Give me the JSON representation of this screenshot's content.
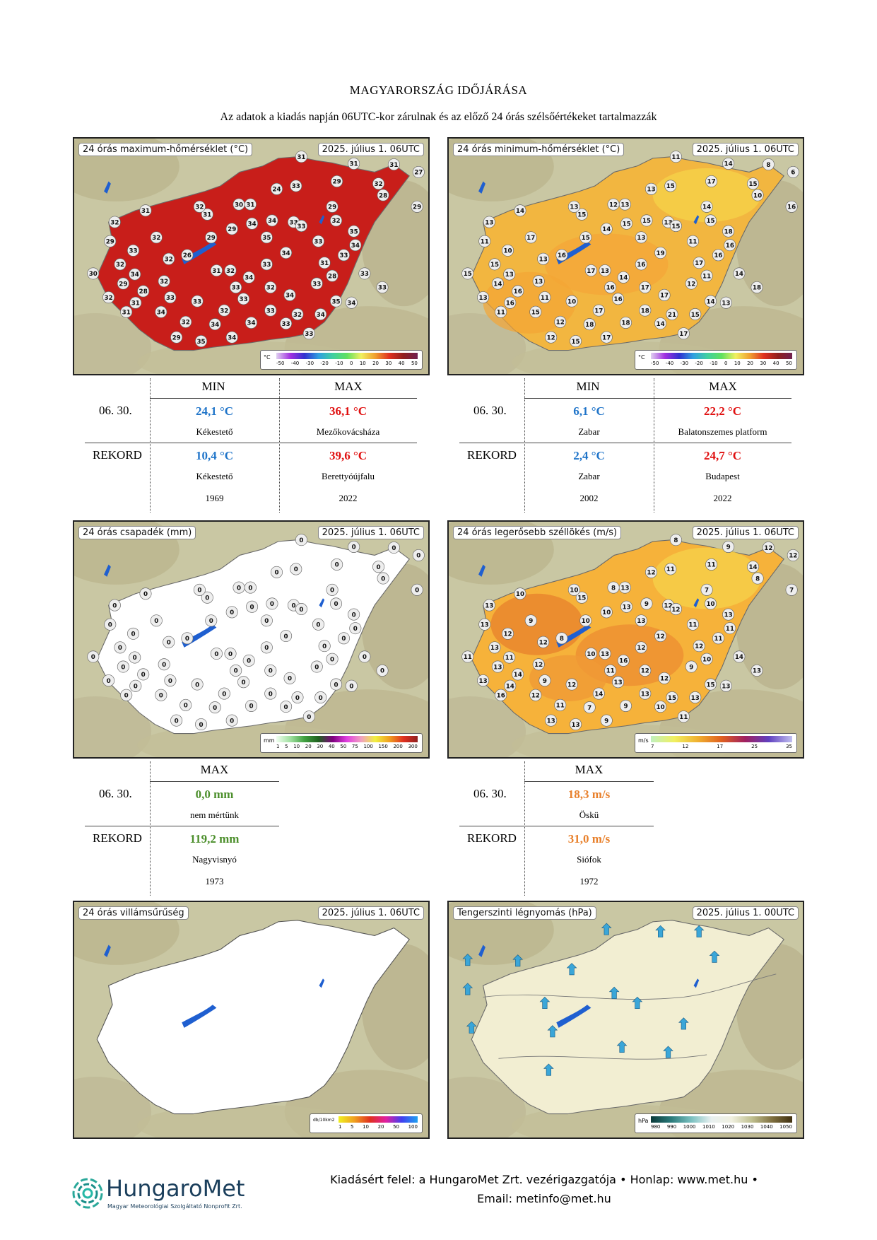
{
  "header": {
    "title": "MAGYARORSZÁG IDŐJÁRÁSA",
    "subtitle": "Az adatok a kiadás napján 06UTC-kor zárulnak és az előző 24 órás szélsőértékeket tartalmazzák"
  },
  "maps": {
    "tmax": {
      "title": "24 órás maximum-hőmérséklet (°C)",
      "date": "2025. július 1. 06UTC",
      "legend_unit": "°C",
      "legend_ticks": [
        "-50",
        "-40",
        "-30",
        "-20",
        "-10",
        "0",
        "10",
        "20",
        "30",
        "40",
        "50"
      ],
      "fill": "#c81e1a"
    },
    "tmin": {
      "title": "24 órás minimum-hőmérséklet (°C)",
      "date": "2025. július 1. 06UTC",
      "legend_unit": "°C",
      "legend_ticks": [
        "-50",
        "-40",
        "-30",
        "-20",
        "-10",
        "0",
        "10",
        "20",
        "30",
        "40",
        "50"
      ],
      "fill": "#f2b640"
    },
    "precip": {
      "title": "24 órás csapadék (mm)",
      "date": "2025. július 1. 06UTC",
      "legend_unit": "mm",
      "legend_ticks": [
        "1",
        "5",
        "10",
        "20",
        "30",
        "40",
        "50",
        "75",
        "100",
        "150",
        "200",
        "300"
      ],
      "fill": "#ffffff"
    },
    "wind": {
      "title": "24 órás legerősebb széllökés (m/s)",
      "date": "2025. július 1. 06UTC",
      "legend_unit": "m/s",
      "legend_ticks": [
        "7",
        "12",
        "17",
        "25",
        "35"
      ],
      "fill": "#f6b23a"
    },
    "lightning": {
      "title": "24 órás villámsűrűség",
      "date": "2025. július 1. 06UTC",
      "legend_unit": "db/10km2",
      "legend_ticks": [
        "1",
        "5",
        "10",
        "20",
        "50",
        "100"
      ],
      "fill": "#ffffff"
    },
    "pressure": {
      "title": "Tengerszinti légnyomás (hPa)",
      "date": "2025. július 1. 00UTC",
      "legend_unit": "hPa",
      "legend_ticks": [
        "980",
        "990",
        "1000",
        "1010",
        "1020",
        "1030",
        "1040",
        "1050"
      ],
      "fill": "#f2eed2"
    }
  },
  "tables": {
    "tmax": {
      "min_header": "MIN",
      "max_header": "MAX",
      "day_label": "06. 30.",
      "record_label": "REKORD",
      "day_min": "24,1 °C",
      "day_min_loc": "Kékestető",
      "day_max": "36,1 °C",
      "day_max_loc": "Mezőkovácsháza",
      "rec_min": "10,4 °C",
      "rec_min_loc": "Kékestető",
      "rec_min_year": "1969",
      "rec_max": "39,6 °C",
      "rec_max_loc": "Berettyóújfalu",
      "rec_max_year": "2022"
    },
    "tmin": {
      "min_header": "MIN",
      "max_header": "MAX",
      "day_label": "06. 30.",
      "record_label": "REKORD",
      "day_min": "6,1 °C",
      "day_min_loc": "Zabar",
      "day_max": "22,2 °C",
      "day_max_loc": "Balatonszemes platform",
      "rec_min": "2,4 °C",
      "rec_min_loc": "Zabar",
      "rec_min_year": "2002",
      "rec_max": "24,7 °C",
      "rec_max_loc": "Budapest",
      "rec_max_year": "2022"
    },
    "precip": {
      "max_header": "MAX",
      "day_label": "06. 30.",
      "record_label": "REKORD",
      "day_max": "0,0 mm",
      "day_max_loc": "nem mértünk",
      "rec_max": "119,2 mm",
      "rec_max_loc": "Nagyvisnyó",
      "rec_max_year": "1973"
    },
    "wind": {
      "max_header": "MAX",
      "day_label": "06. 30.",
      "record_label": "REKORD",
      "day_max": "18,3 m/s",
      "day_max_loc": "Öskü",
      "rec_max": "31,0 m/s",
      "rec_max_loc": "Siófok",
      "rec_max_year": "1972"
    }
  },
  "footer": {
    "logo_name": "HungaroMet",
    "logo_sub": "Magyar Meteorológiai Szolgáltató Nonprofit Zrt.",
    "line1": "Kiadásért felel: a HungaroMet Zrt. vezérigazgatója • Honlap: www.met.hu •",
    "line2": "Email: metinfo@met.hu"
  },
  "station_values": {
    "tmax": [
      "31",
      "31",
      "29",
      "32",
      "31",
      "27",
      "31",
      "29",
      "29",
      "28",
      "32",
      "33",
      "24",
      "33",
      "31",
      "29",
      "29",
      "31",
      "30",
      "32",
      "32",
      "31",
      "32",
      "29",
      "32",
      "33",
      "34",
      "32",
      "26",
      "28",
      "31",
      "32",
      "30",
      "29",
      "31",
      "32",
      "33",
      "34",
      "32",
      "33",
      "29",
      "31",
      "32",
      "33",
      "34",
      "32",
      "34",
      "33",
      "32",
      "33",
      "28",
      "31",
      "33",
      "33",
      "33",
      "34",
      "35",
      "34",
      "33",
      "32",
      "33",
      "33",
      "34",
      "35",
      "34",
      "34",
      "33",
      "33",
      "35",
      "34",
      "34",
      "34",
      "33",
      "35",
      "34"
    ],
    "tmin": [
      "11",
      "14",
      "17",
      "15",
      "8",
      "6",
      "14",
      "16",
      "14",
      "10",
      "15",
      "13",
      "13",
      "15",
      "13",
      "14",
      "15",
      "15",
      "12",
      "13",
      "17",
      "14",
      "13",
      "11",
      "15",
      "10",
      "13",
      "13",
      "16",
      "16",
      "11",
      "13",
      "15",
      "14",
      "16",
      "13",
      "11",
      "15",
      "12",
      "10",
      "12",
      "17",
      "13",
      "16",
      "14",
      "17",
      "17",
      "18",
      "21",
      "12",
      "11",
      "17",
      "16",
      "14",
      "18",
      "15",
      "14",
      "13",
      "17",
      "17",
      "16",
      "16",
      "19",
      "13",
      "15",
      "15",
      "11",
      "15",
      "18",
      "16",
      "18",
      "18",
      "14",
      "15",
      "17"
    ],
    "precip": [
      "0",
      "0",
      "0",
      "0",
      "0",
      "0",
      "0",
      "0",
      "0",
      "0",
      "0",
      "0",
      "0",
      "0",
      "0",
      "0",
      "0",
      "0",
      "0",
      "0",
      "0",
      "0",
      "0",
      "0",
      "0",
      "0",
      "0",
      "0",
      "0",
      "0",
      "0",
      "0",
      "0",
      "0",
      "0",
      "0",
      "0",
      "0",
      "0",
      "0",
      "0",
      "0",
      "0",
      "0",
      "0",
      "0",
      "0",
      "0",
      "0",
      "0",
      "0",
      "0",
      "0",
      "0",
      "0",
      "0",
      "0",
      "0",
      "0",
      "0",
      "0",
      "0",
      "0",
      "0",
      "0",
      "0",
      "0",
      "0",
      "0",
      "0",
      "0",
      "0",
      "0",
      "0",
      "0"
    ],
    "wind": [
      "8",
      "9",
      "11",
      "14",
      "12",
      "12",
      "9",
      "7",
      "7",
      "8",
      "10",
      "12",
      "12",
      "11",
      "13",
      "10",
      "10",
      "15",
      "8",
      "10",
      "9",
      "10",
      "13",
      "13",
      "13",
      "12",
      "11",
      "12",
      "8",
      "14",
      "16",
      "13",
      "11",
      "13",
      "14",
      "12",
      "9",
      "12",
      "11",
      "12",
      "13",
      "10",
      "13",
      "11",
      "16",
      "12",
      "12",
      "13",
      "15",
      "9",
      "10",
      "12",
      "11",
      "14",
      "13",
      "13",
      "15",
      "13",
      "11",
      "14",
      "13",
      "12",
      "12",
      "13",
      "13",
      "9",
      "11",
      "12",
      "13",
      "11",
      "7",
      "9",
      "10",
      "13",
      "9"
    ]
  }
}
